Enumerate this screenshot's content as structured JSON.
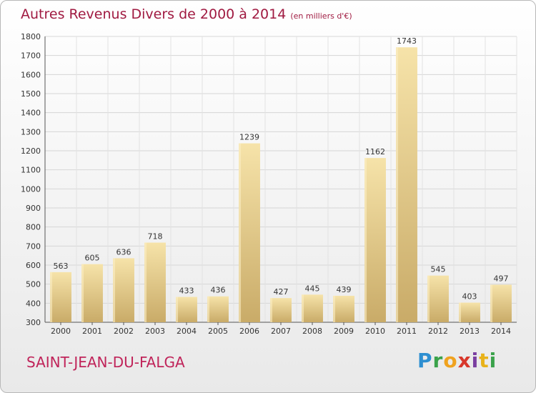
{
  "title": "Autres Revenus Divers de 2000 à 2014",
  "subtitle": "(en milliers d'€)",
  "place": "SAINT-JEAN-DU-FALGA",
  "logo": {
    "letters": [
      "P",
      "r",
      "o",
      "x",
      "i",
      "t",
      "i"
    ],
    "colors": [
      "#2e8fd1",
      "#3aa24a",
      "#f0a21f",
      "#d8372b",
      "#7a3fa0",
      "#e8b21a",
      "#3aa24a"
    ]
  },
  "colors": {
    "title": "#a01a41",
    "bar": "#e4c98a",
    "bar_top": "#f6e3a9",
    "bar_bottom": "#c9ab68"
  },
  "chart_data": {
    "type": "bar",
    "categories": [
      "2000",
      "2001",
      "2002",
      "2003",
      "2004",
      "2005",
      "2006",
      "2007",
      "2008",
      "2009",
      "2010",
      "2011",
      "2012",
      "2013",
      "2014"
    ],
    "values": [
      563,
      605,
      636,
      718,
      433,
      436,
      1239,
      427,
      445,
      439,
      1162,
      1743,
      545,
      403,
      497
    ],
    "ylim": [
      300,
      1800
    ],
    "yticks": [
      300,
      400,
      500,
      600,
      700,
      800,
      900,
      1000,
      1100,
      1200,
      1300,
      1400,
      1500,
      1600,
      1700,
      1800
    ],
    "grid": true,
    "data_labels": true
  }
}
